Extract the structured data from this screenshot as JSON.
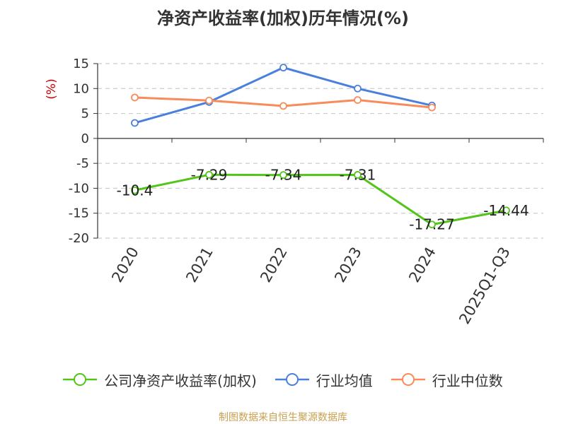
{
  "chart_data": {
    "type": "line",
    "title": "净资产收益率(加权)历年情况(%)",
    "ylabel": "(%)",
    "categories": [
      "2020",
      "2021",
      "2022",
      "2023",
      "2024",
      "2025Q1-Q3"
    ],
    "yticks": [
      15,
      10,
      5,
      0,
      -5,
      -10,
      -15,
      -20
    ],
    "ylim": [
      -20,
      15
    ],
    "grid": true,
    "legend_position": "bottom",
    "series": [
      {
        "name": "公司净资产收益率(加权)",
        "color": "#52c41a",
        "values": [
          -10.4,
          -7.29,
          -7.34,
          -7.31,
          -17.27,
          -14.44
        ],
        "labels": [
          "-10.4",
          "-7.29",
          "-7.34",
          "-7.31",
          "-17.27",
          "-14.44"
        ]
      },
      {
        "name": "行业均值",
        "color": "#4a7fdc",
        "values": [
          3.1,
          7.3,
          14.2,
          10.0,
          6.6,
          null
        ]
      },
      {
        "name": "行业中位数",
        "color": "#f78c5a",
        "values": [
          8.2,
          7.6,
          6.5,
          7.7,
          6.2,
          null
        ]
      }
    ]
  },
  "source_text": "制图数据来自恒生聚源数据库",
  "colors": {
    "title": "#333333",
    "ylabel": "#cc0000",
    "source": "#c8a050",
    "grid": "#cccccc",
    "axis": "#333333"
  }
}
